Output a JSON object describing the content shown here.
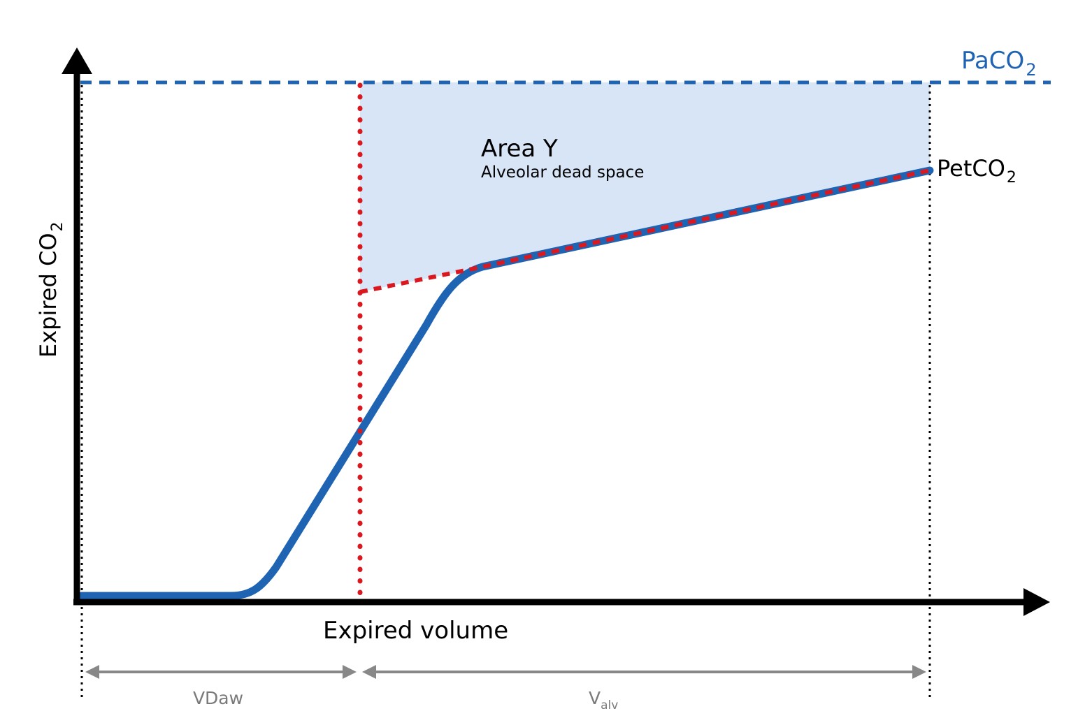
{
  "colors": {
    "axis": "#000000",
    "curve": "#1f63b3",
    "reference": "#1f63b3",
    "marker": "#d9181f",
    "area_fill": "#d8e5f7",
    "guide": "#000000",
    "span_arrows": "#888888",
    "span_text": "#7a7a7a"
  },
  "axes": {
    "x_label": "Expired volume",
    "y_label": {
      "base": "Expired CO",
      "sub": "2"
    }
  },
  "reference_line": {
    "base": "PaCO",
    "sub": "2"
  },
  "end_point": {
    "base": "PetCO",
    "sub": "2"
  },
  "area": {
    "title": "Area Y",
    "subtitle": "Alveolar dead space"
  },
  "spans": {
    "airway": {
      "label": "VDaw"
    },
    "alveolar": {
      "base": "V",
      "sub": "alv"
    }
  }
}
